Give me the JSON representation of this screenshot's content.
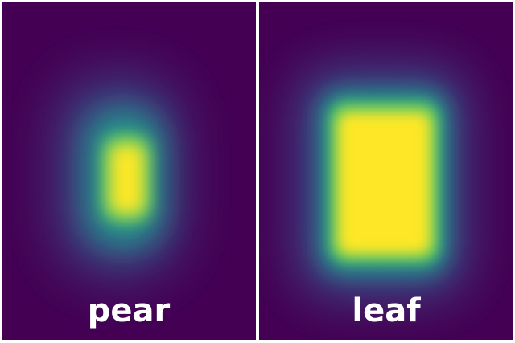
{
  "panels": [
    {
      "label": "pear",
      "colors": {
        "background": "#440154",
        "mid": "#21918c",
        "peak": "#fde725"
      }
    },
    {
      "label": "leaf",
      "colors": {
        "background": "#440154",
        "mid": "#21918c",
        "peak": "#fde725"
      }
    }
  ]
}
